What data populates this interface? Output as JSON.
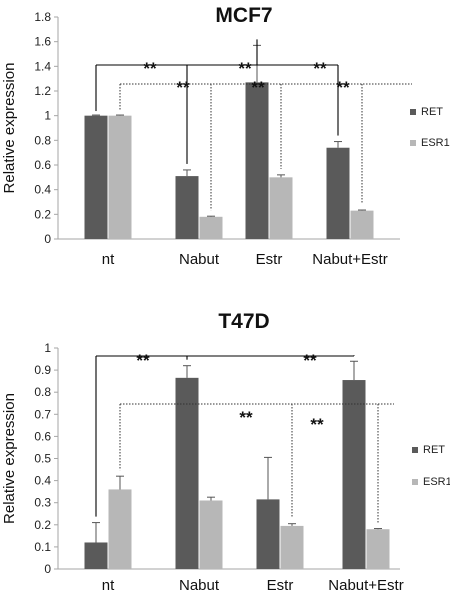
{
  "colors": {
    "RET": "#5a5a5a",
    "ESR1": "#b7b7b7",
    "axis": "#a6a6a6"
  },
  "chart_data": [
    {
      "type": "bar",
      "title": "MCF7",
      "ylabel": "Relative expression",
      "xlabel": "",
      "categories": [
        "nt",
        "Nabut",
        "Estr",
        "Nabut+Estr"
      ],
      "ylim": [
        0,
        1.8
      ],
      "yticks": [
        0,
        0.2,
        0.4,
        0.6,
        0.8,
        1,
        1.2,
        1.4,
        1.6,
        1.8
      ],
      "yticklabels": [
        "0",
        "0.2",
        "0.4",
        "0.6",
        "0.8",
        "1",
        "1.2",
        "1.4",
        "1.6",
        "1.8"
      ],
      "legend_position": "right",
      "grid": false,
      "series": [
        {
          "name": "RET",
          "values": [
            1.0,
            0.51,
            1.27,
            0.74
          ],
          "errors": [
            0.005,
            0.05,
            0.3,
            0.05
          ]
        },
        {
          "name": "ESR1",
          "values": [
            1.0,
            0.18,
            0.5,
            0.23
          ],
          "errors": [
            0.005,
            0.005,
            0.02,
            0.005
          ]
        }
      ],
      "significance": [
        {
          "label": "**",
          "style": "solid",
          "from": [
            0,
            "RET"
          ],
          "to": [
            1,
            "RET"
          ]
        },
        {
          "label": "**",
          "style": "solid",
          "from": [
            0,
            "RET"
          ],
          "to": [
            2,
            "RET"
          ]
        },
        {
          "label": "**",
          "style": "solid",
          "from": [
            0,
            "RET"
          ],
          "to": [
            3,
            "RET"
          ]
        },
        {
          "label": "**",
          "style": "dotted",
          "from": [
            0,
            "ESR1"
          ],
          "to": [
            1,
            "ESR1"
          ]
        },
        {
          "label": "**",
          "style": "dotted",
          "from": [
            0,
            "ESR1"
          ],
          "to": [
            2,
            "ESR1"
          ]
        },
        {
          "label": "**",
          "style": "dotted",
          "from": [
            0,
            "ESR1"
          ],
          "to": [
            3,
            "ESR1"
          ]
        }
      ]
    },
    {
      "type": "bar",
      "title": "T47D",
      "ylabel": "Relative expression",
      "xlabel": "",
      "categories": [
        "nt",
        "Nabut",
        "Estr",
        "Nabut+Estr"
      ],
      "ylim": [
        0,
        1
      ],
      "yticks": [
        0,
        0.1,
        0.2,
        0.3,
        0.4,
        0.5,
        0.6,
        0.7,
        0.8,
        0.9,
        1
      ],
      "yticklabels": [
        "0",
        "0.1",
        "0.2",
        "0.3",
        "0.4",
        "0.5",
        "0.6",
        "0.7",
        "0.8",
        "0.9",
        "1"
      ],
      "legend_position": "right",
      "grid": false,
      "series": [
        {
          "name": "RET",
          "values": [
            0.12,
            0.865,
            0.315,
            0.855
          ],
          "errors": [
            0.09,
            0.055,
            0.19,
            0.085
          ]
        },
        {
          "name": "ESR1",
          "values": [
            0.36,
            0.31,
            0.195,
            0.18
          ],
          "errors": [
            0.06,
            0.015,
            0.01,
            0.003
          ]
        }
      ],
      "significance": [
        {
          "label": "**",
          "style": "solid",
          "from": [
            0,
            "RET"
          ],
          "to": [
            1,
            "RET"
          ]
        },
        {
          "label": "**",
          "style": "solid",
          "from": [
            1,
            "RET"
          ],
          "to": [
            3,
            "RET"
          ]
        },
        {
          "label": "**",
          "style": "dotted",
          "from": [
            0,
            "ESR1"
          ],
          "to": [
            2,
            "ESR1"
          ]
        },
        {
          "label": "**",
          "style": "dotted",
          "from": [
            2,
            "ESR1"
          ],
          "to": [
            3,
            "ESR1"
          ]
        }
      ]
    }
  ]
}
